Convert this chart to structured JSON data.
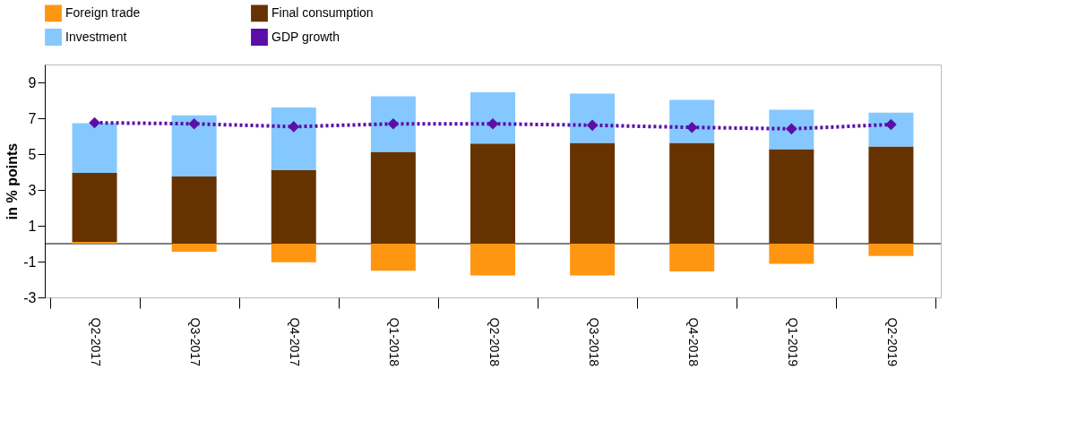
{
  "chart_data": {
    "type": "bar",
    "stacked": true,
    "ylabel": "in % points",
    "categories": [
      "Q2-2017",
      "Q3-2017",
      "Q4-2017",
      "Q1-2018",
      "Q2-2018",
      "Q3-2018",
      "Q4-2018",
      "Q1-2019",
      "Q2-2019"
    ],
    "series": [
      {
        "name": "Foreign trade",
        "color": "#ff9611",
        "values": [
          0.1,
          -0.45,
          -1.04,
          -1.51,
          -1.78,
          -1.78,
          -1.55,
          -1.12,
          -0.69
        ]
      },
      {
        "name": "Final consumption",
        "color": "#663300",
        "values": [
          3.85,
          3.75,
          4.1,
          5.12,
          5.59,
          5.63,
          5.63,
          5.27,
          5.43
        ]
      },
      {
        "name": "Investment",
        "color": "#85c8ff",
        "values": [
          2.78,
          3.41,
          3.5,
          3.1,
          2.86,
          2.74,
          2.39,
          2.2,
          1.88
        ]
      },
      {
        "name": "GDP growth",
        "type": "line",
        "color": "#5b0fa8",
        "marker": "diamond",
        "line_style": "dotted",
        "values": [
          6.75,
          6.69,
          6.53,
          6.69,
          6.69,
          6.61,
          6.49,
          6.41,
          6.65
        ]
      }
    ],
    "ylim": [
      -3,
      10
    ],
    "yticks": [
      -3,
      -1,
      1,
      3,
      5,
      7,
      9
    ],
    "grid": false,
    "legend": "top"
  }
}
